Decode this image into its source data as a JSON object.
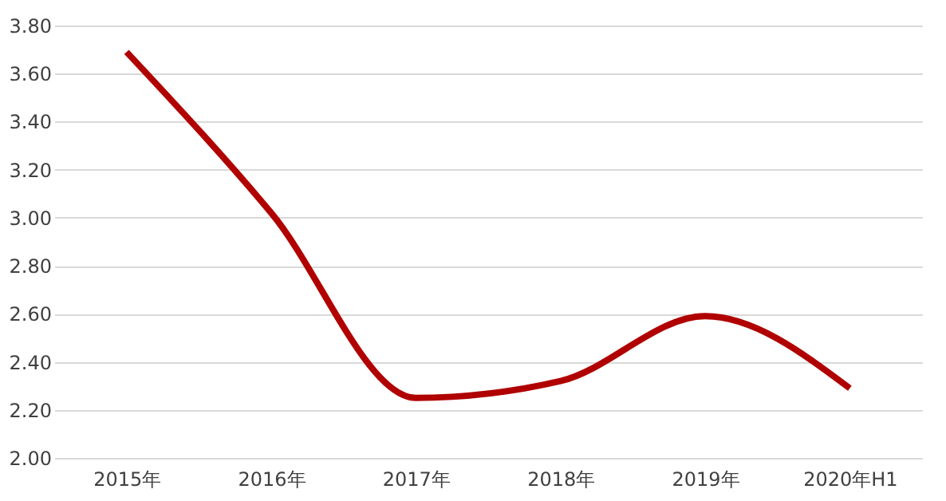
{
  "chart_data": {
    "type": "line",
    "categories": [
      "2015年",
      "2016年",
      "2017年",
      "2018年",
      "2019年",
      "2020年H1"
    ],
    "series": [
      {
        "color": "#b00000",
        "values": [
          3.69,
          3.02,
          2.25,
          2.32,
          2.59,
          2.29
        ]
      }
    ],
    "ylim": [
      2.0,
      3.8
    ],
    "yticks": [
      {
        "value": 2.0,
        "label": "2.00"
      },
      {
        "value": 2.2,
        "label": "2.20"
      },
      {
        "value": 2.4,
        "label": "2.40"
      },
      {
        "value": 2.6,
        "label": "2.60"
      },
      {
        "value": 2.8,
        "label": "2.80"
      },
      {
        "value": 3.0,
        "label": "3.00"
      },
      {
        "value": 3.2,
        "label": "3.20"
      },
      {
        "value": 3.4,
        "label": "3.40"
      },
      {
        "value": 3.6,
        "label": "3.60"
      },
      {
        "value": 3.8,
        "label": "3.80"
      }
    ],
    "grid": "y",
    "marker": "none",
    "line_style": "solid"
  }
}
